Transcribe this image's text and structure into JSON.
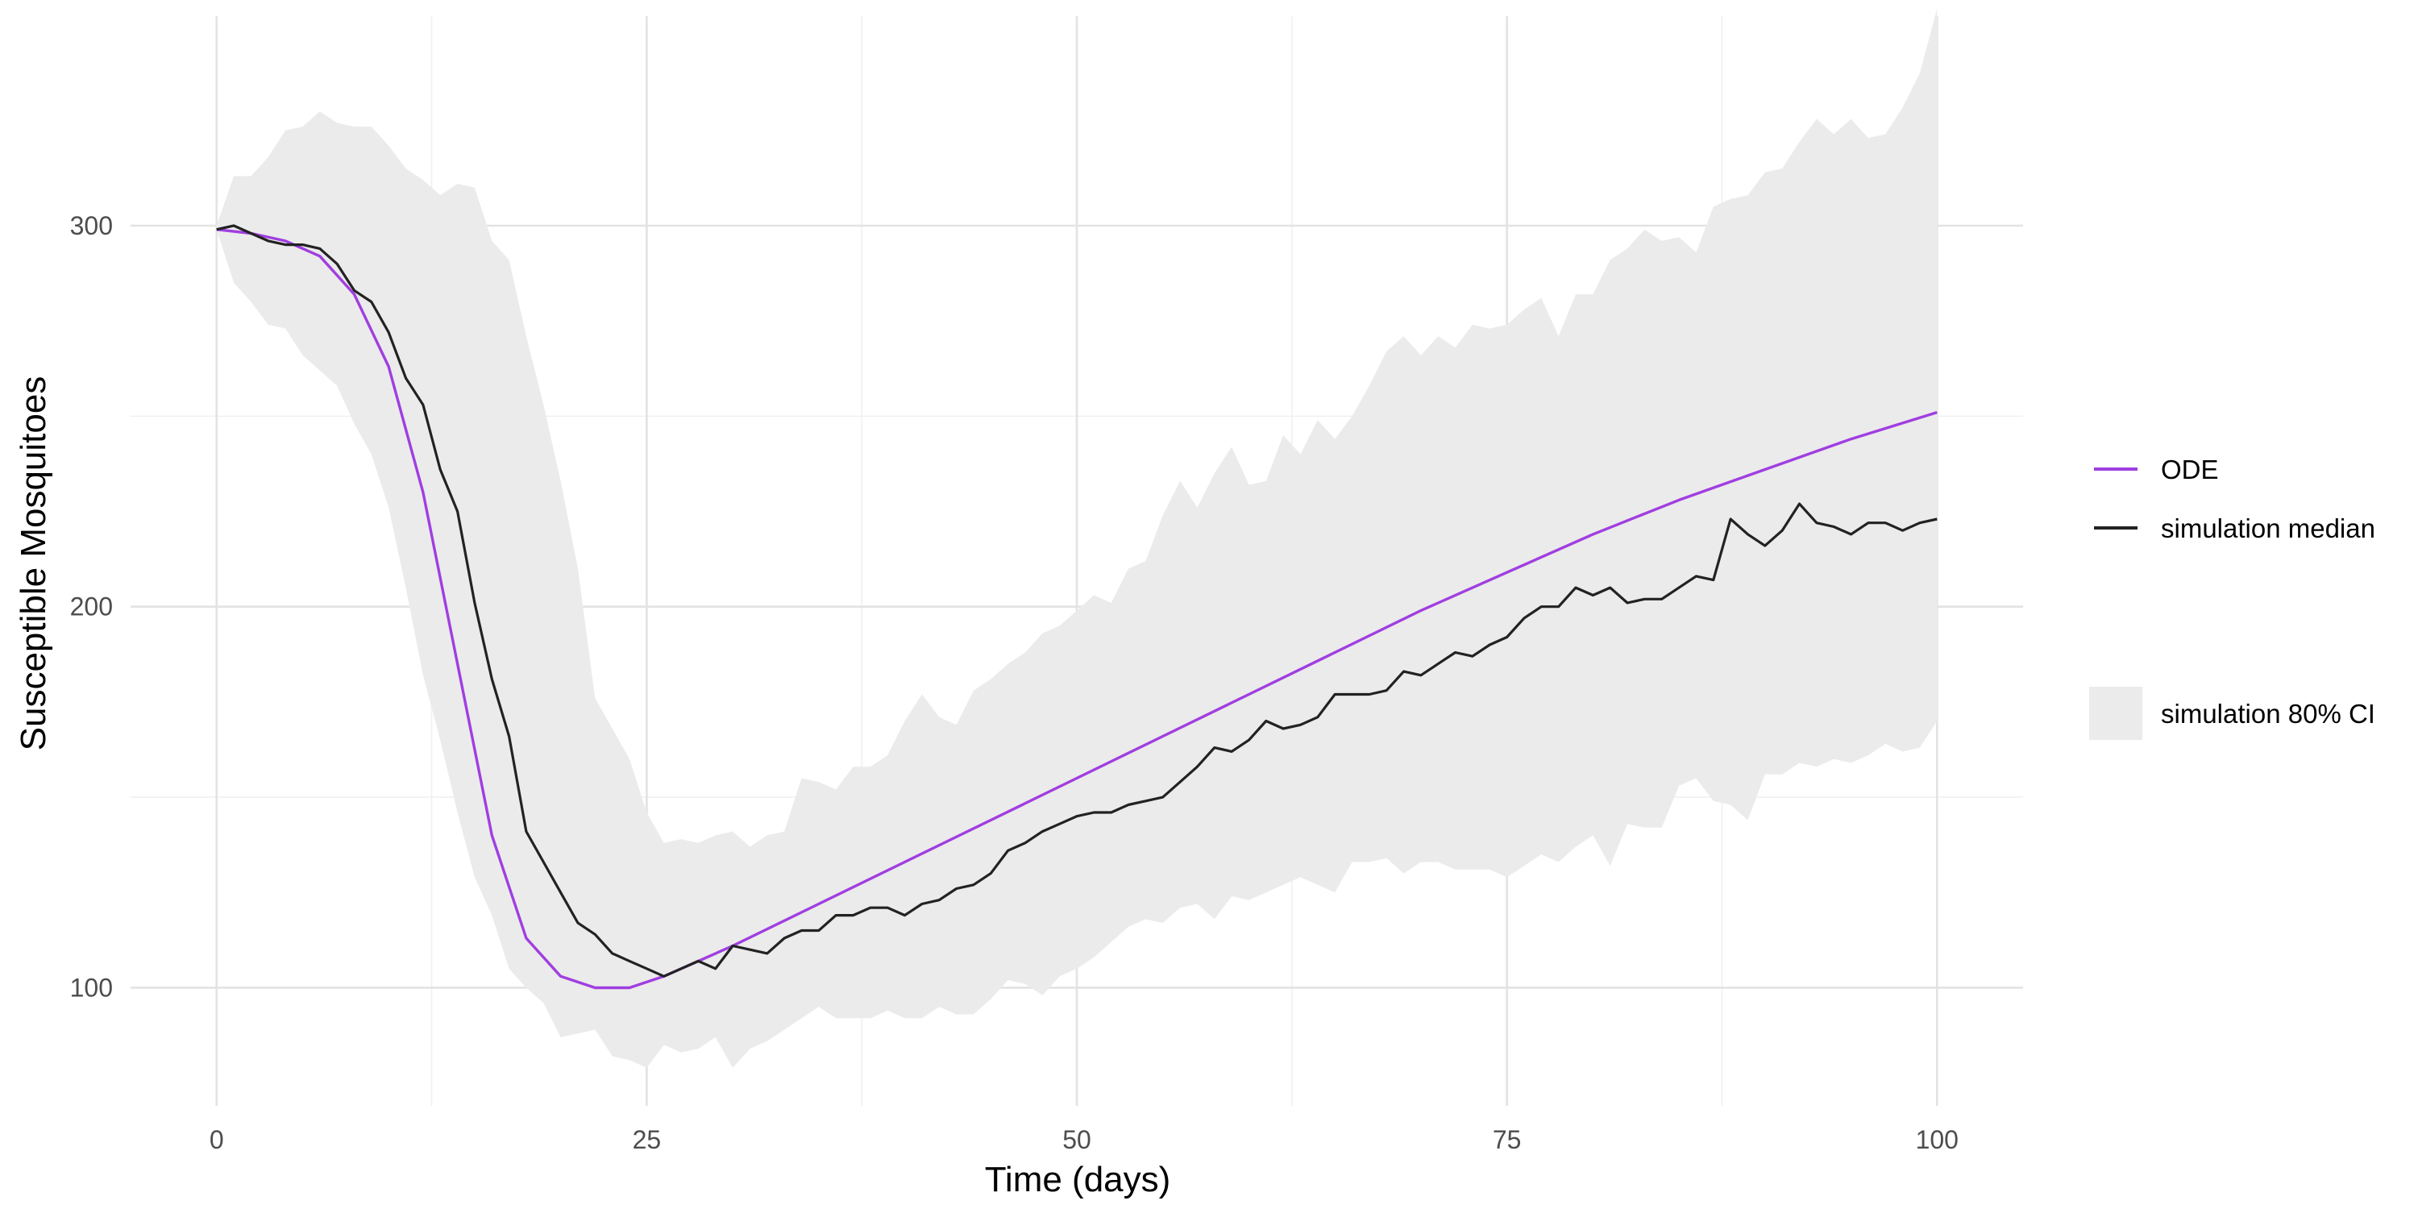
{
  "chart_data": {
    "type": "line",
    "title": "",
    "xlabel": "Time (days)",
    "ylabel": "Susceptible Mosquitoes",
    "xlim": [
      -5,
      105
    ],
    "ylim": [
      69,
      355
    ],
    "x_major_ticks": [
      0,
      25,
      50,
      75,
      100
    ],
    "x_minor_ticks": [
      12.5,
      37.5,
      62.5,
      87.5
    ],
    "y_major_ticks": [
      100,
      200,
      300
    ],
    "y_minor_ticks": [
      150,
      250
    ],
    "x_tick_labels": [
      "0",
      "25",
      "50",
      "75",
      "100"
    ],
    "y_tick_labels": [
      "100",
      "200",
      "300"
    ],
    "grid": true,
    "legend_position": "right",
    "colors": {
      "ode": "#a03ee0",
      "median": "#222222",
      "ci": "#ebebeb"
    },
    "series": [
      {
        "name": "ODE",
        "x": [
          0,
          2,
          4,
          6,
          8,
          10,
          12,
          14,
          16,
          18,
          20,
          22,
          24,
          26,
          28,
          30,
          35,
          40,
          45,
          50,
          55,
          60,
          65,
          70,
          75,
          80,
          85,
          90,
          95,
          100
        ],
        "values": [
          299,
          298,
          296,
          292,
          282,
          263,
          230,
          185,
          140,
          113,
          103,
          100,
          100,
          103,
          107,
          111,
          122,
          133,
          144,
          155,
          166,
          177,
          188,
          199,
          209,
          219,
          228,
          236,
          244,
          251
        ]
      },
      {
        "name": "simulation median",
        "x": [
          0,
          1,
          2,
          3,
          4,
          5,
          6,
          7,
          8,
          9,
          10,
          11,
          12,
          13,
          14,
          15,
          16,
          17,
          18,
          19,
          20,
          21,
          22,
          23,
          24,
          25,
          26,
          27,
          28,
          29,
          30,
          31,
          32,
          33,
          34,
          35,
          36,
          37,
          38,
          39,
          40,
          41,
          42,
          43,
          44,
          45,
          46,
          47,
          48,
          49,
          50,
          51,
          52,
          53,
          54,
          55,
          56,
          57,
          58,
          59,
          60,
          61,
          62,
          63,
          64,
          65,
          66,
          67,
          68,
          69,
          70,
          71,
          72,
          73,
          74,
          75,
          76,
          77,
          78,
          79,
          80,
          81,
          82,
          83,
          84,
          85,
          86,
          87,
          88,
          89,
          90,
          91,
          92,
          93,
          94,
          95,
          96,
          97,
          98,
          99,
          100
        ],
        "values": [
          299,
          300,
          298,
          296,
          295,
          295,
          294,
          290,
          283,
          280,
          272,
          260,
          253,
          236,
          225,
          201,
          181,
          166,
          141,
          133,
          125,
          117,
          114,
          109,
          107,
          105,
          103,
          105,
          107,
          105,
          111,
          110,
          109,
          113,
          115,
          115,
          119,
          119,
          121,
          121,
          119,
          122,
          123,
          126,
          127,
          130,
          136,
          138,
          141,
          143,
          145,
          146,
          146,
          148,
          149,
          150,
          154,
          158,
          163,
          162,
          165,
          170,
          168,
          169,
          171,
          177,
          177,
          177,
          178,
          183,
          182,
          185,
          188,
          187,
          190,
          192,
          197,
          200,
          200,
          205,
          203,
          205,
          201,
          202,
          202,
          205,
          208,
          207,
          223,
          219,
          216,
          220,
          227,
          222,
          221,
          219,
          222,
          222,
          220,
          222,
          223
        ]
      }
    ],
    "bands": [
      {
        "name": "simulation 80% CI",
        "x": [
          0,
          1,
          2,
          3,
          4,
          5,
          6,
          7,
          8,
          9,
          10,
          11,
          12,
          13,
          14,
          15,
          16,
          17,
          18,
          19,
          20,
          21,
          22,
          23,
          24,
          25,
          26,
          27,
          28,
          29,
          30,
          31,
          32,
          33,
          34,
          35,
          36,
          37,
          38,
          39,
          40,
          41,
          42,
          43,
          44,
          45,
          46,
          47,
          48,
          49,
          50,
          51,
          52,
          53,
          54,
          55,
          56,
          57,
          58,
          59,
          60,
          61,
          62,
          63,
          64,
          65,
          66,
          67,
          68,
          69,
          70,
          71,
          72,
          73,
          74,
          75,
          76,
          77,
          78,
          79,
          80,
          81,
          82,
          83,
          84,
          85,
          86,
          87,
          88,
          89,
          90,
          91,
          92,
          93,
          94,
          95,
          96,
          97,
          98,
          99,
          100
        ],
        "upper": [
          300,
          313,
          313,
          318,
          325,
          326,
          330,
          327,
          326,
          326,
          321,
          315,
          312,
          308,
          311,
          310,
          296,
          291,
          271,
          253,
          233,
          210,
          176,
          168,
          160,
          146,
          138,
          139,
          138,
          140,
          141,
          137,
          140,
          141,
          155,
          154,
          152,
          158,
          158,
          161,
          170,
          177,
          171,
          169,
          178,
          181,
          185,
          188,
          193,
          195,
          199,
          203,
          201,
          210,
          212,
          224,
          233,
          226,
          235,
          242,
          232,
          233,
          245,
          240,
          249,
          244,
          250,
          258,
          267,
          271,
          266,
          271,
          268,
          274,
          273,
          274,
          278,
          281,
          271,
          282,
          282,
          291,
          294,
          299,
          296,
          297,
          293,
          305,
          307,
          308,
          314,
          315,
          322,
          328,
          324,
          328,
          323,
          324,
          331,
          340,
          357
        ],
        "lower": [
          299,
          285,
          280,
          274,
          273,
          266,
          262,
          258,
          248,
          240,
          226,
          205,
          182,
          165,
          146,
          129,
          119,
          105,
          100,
          96,
          87,
          88,
          89,
          82,
          81,
          79,
          85,
          83,
          84,
          87,
          79,
          84,
          86,
          89,
          92,
          95,
          92,
          92,
          92,
          94,
          92,
          92,
          95,
          93,
          93,
          97,
          102,
          101,
          98,
          103,
          105,
          108,
          112,
          116,
          118,
          117,
          121,
          122,
          118,
          124,
          123,
          125,
          127,
          129,
          127,
          125,
          133,
          133,
          134,
          130,
          133,
          133,
          131,
          131,
          131,
          129,
          132,
          135,
          133,
          137,
          140,
          132,
          143,
          142,
          142,
          153,
          155,
          149,
          148,
          144,
          156,
          156,
          159,
          158,
          160,
          159,
          161,
          164,
          162,
          163,
          170
        ]
      }
    ]
  }
}
